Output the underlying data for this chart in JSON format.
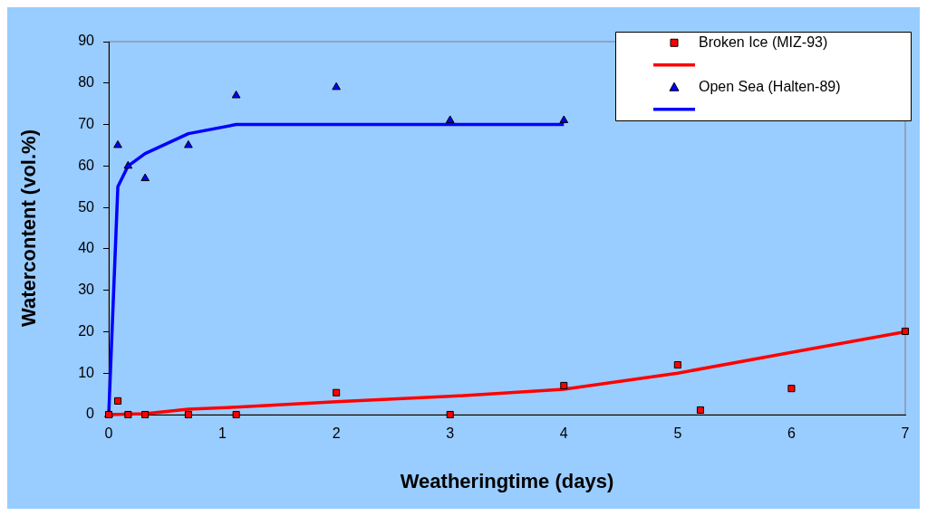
{
  "chart_data": {
    "type": "scatter",
    "xlabel": "Weatheringtime (days)",
    "ylabel": "Watercontent (vol.%)",
    "xlim": [
      0,
      7
    ],
    "xticks": [
      0,
      1,
      2,
      3,
      4,
      5,
      6,
      7
    ],
    "ylim": [
      0,
      90
    ],
    "yticks": [
      0,
      10,
      20,
      30,
      40,
      50,
      60,
      70,
      80,
      90
    ],
    "grid": false,
    "legend": "top right",
    "series": [
      {
        "name": "Broken Ice (MIZ-93)",
        "type": "scatter",
        "marker": "square",
        "color": "#ff0000",
        "x": [
          0,
          0.08,
          0.17,
          0.32,
          0.7,
          1.12,
          2,
          3,
          4,
          5,
          5.2,
          6,
          7
        ],
        "values": [
          0,
          3.3,
          0,
          0,
          0,
          0,
          5.3,
          0,
          7,
          12,
          1.1,
          6.3,
          20.1
        ]
      },
      {
        "type": "line",
        "marker": "none",
        "color": "#ff0000",
        "x": [
          0,
          0.32,
          0.7,
          1.12,
          2,
          3,
          4,
          5,
          6,
          7
        ],
        "values": [
          0,
          0.2,
          1.3,
          1.8,
          3.1,
          4.4,
          6.1,
          10,
          15,
          20
        ]
      },
      {
        "name": "Open Sea (Halten-89)",
        "type": "scatter",
        "marker": "triangle",
        "color": "#0000ff",
        "x": [
          0,
          0.08,
          0.17,
          0.32,
          0.7,
          1.12,
          2,
          3,
          4
        ],
        "values": [
          0,
          65,
          60,
          57,
          65,
          77,
          79,
          71,
          71
        ]
      },
      {
        "type": "line",
        "marker": "none",
        "color": "#0000ff",
        "x": [
          0,
          0.08,
          0.17,
          0.32,
          0.7,
          1.12,
          2,
          3,
          4
        ],
        "values": [
          0,
          55,
          60,
          63,
          67.8,
          70,
          70,
          70,
          70
        ]
      }
    ]
  }
}
